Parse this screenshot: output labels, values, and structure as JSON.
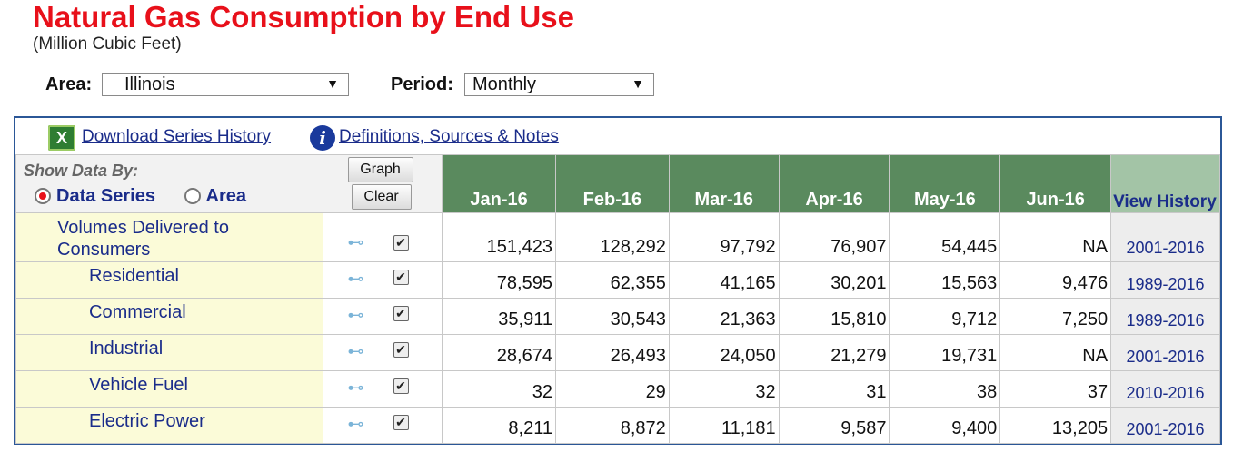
{
  "title": "Natural Gas Consumption by End Use",
  "subtitle": "(Million Cubic Feet)",
  "area": {
    "label": "Area:",
    "value": "Illinois"
  },
  "period": {
    "label": "Period:",
    "value": "Monthly"
  },
  "toolbar": {
    "download_label": "Download Series History",
    "definitions_label": "Definitions, Sources & Notes"
  },
  "show_by": {
    "label": "Show Data By:",
    "options": [
      "Data Series",
      "Area"
    ],
    "selected": "Data Series"
  },
  "buttons": {
    "graph": "Graph",
    "clear": "Clear"
  },
  "columns": [
    "Jan-16",
    "Feb-16",
    "Mar-16",
    "Apr-16",
    "May-16",
    "Jun-16"
  ],
  "view_history_label": "View History",
  "rows": [
    {
      "label": "Volumes Delivered to Consumers",
      "values": [
        "151,423",
        "128,292",
        "97,792",
        "76,907",
        "54,445",
        "NA"
      ],
      "history": "2001-2016"
    },
    {
      "label": "Residential",
      "values": [
        "78,595",
        "62,355",
        "41,165",
        "30,201",
        "15,563",
        "9,476"
      ],
      "history": "1989-2016"
    },
    {
      "label": "Commercial",
      "values": [
        "35,911",
        "30,543",
        "21,363",
        "15,810",
        "9,712",
        "7,250"
      ],
      "history": "1989-2016"
    },
    {
      "label": "Industrial",
      "values": [
        "28,674",
        "26,493",
        "24,050",
        "21,279",
        "19,731",
        "NA"
      ],
      "history": "2001-2016"
    },
    {
      "label": "Vehicle Fuel",
      "values": [
        "32",
        "29",
        "32",
        "31",
        "38",
        "37"
      ],
      "history": "2010-2016"
    },
    {
      "label": "Electric Power",
      "values": [
        "8,211",
        "8,872",
        "11,181",
        "9,587",
        "9,400",
        "13,205"
      ],
      "history": "2001-2016"
    }
  ]
}
